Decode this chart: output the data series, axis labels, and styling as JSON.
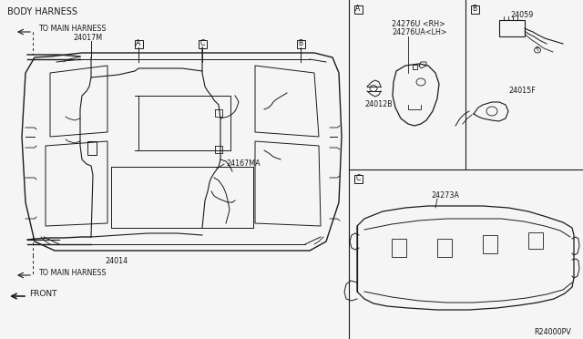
{
  "bg_color": "#f5f5f5",
  "line_color": "#1a1a1a",
  "text_color": "#1a1a1a",
  "labels": {
    "body_harness": "BODY HARNESS",
    "to_main_harness_top": "TO MAIN HARNESS",
    "to_main_harness_bot": "TO MAIN HARNESS",
    "front": "FRONT",
    "part_24017m": "24017M",
    "part_24014": "24014",
    "part_24167ma": "24167MA",
    "part_a_label": "A",
    "part_b_label": "B",
    "part_c_label": "C",
    "box_a_label": "A",
    "box_b_label": "B",
    "box_c_label": "C",
    "part_24276u": "24276U <RH>",
    "part_24276ua": "24276UA<LH>",
    "part_24012b": "24012B",
    "part_24059": "24059",
    "part_24015f": "24015F",
    "part_24273a": "24273A",
    "ref_code": "R24000PV"
  },
  "figsize": [
    6.4,
    3.72
  ],
  "dpi": 100
}
